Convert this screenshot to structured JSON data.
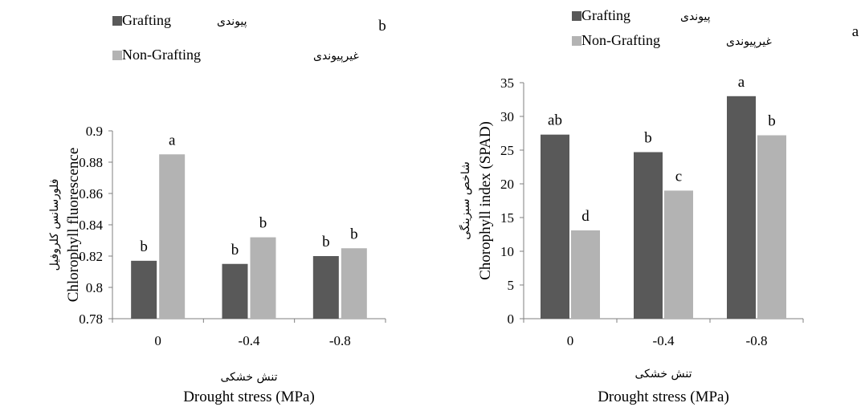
{
  "colors": {
    "grafting": "#595959",
    "non_grafting": "#b3b3b3",
    "axis": "#7f7f7f"
  },
  "chart_data": [
    {
      "type": "bar",
      "panel_label": "b",
      "categories": [
        "0",
        "-0.4",
        "-0.8"
      ],
      "series": [
        {
          "name": "Grafting",
          "name_fa": "پیوندی",
          "values": [
            0.817,
            0.815,
            0.82
          ],
          "letters": [
            "b",
            "b",
            "b"
          ]
        },
        {
          "name": "Non-Grafting",
          "name_fa": "غیرپیوندی",
          "values": [
            0.885,
            0.832,
            0.825
          ],
          "letters": [
            "a",
            "b",
            "b"
          ]
        }
      ],
      "ylabel": "Chlorophyll fluorescence",
      "ylabel_fa": "فلورسانس کلروفیل",
      "xlabel": "Drought stress (MPa)",
      "xlabel_fa": "تنش خشکی",
      "ylim": [
        0.78,
        0.9
      ],
      "yticks": [
        "0.78",
        "0.8",
        "0.82",
        "0.84",
        "0.86",
        "0.88",
        "0.9"
      ],
      "grid": false,
      "legend_position": "top-left"
    },
    {
      "type": "bar",
      "panel_label": "a",
      "categories": [
        "0",
        "-0.4",
        "-0.8"
      ],
      "series": [
        {
          "name": "Grafting",
          "name_fa": "پیوندی",
          "values": [
            27.3,
            24.7,
            33
          ],
          "letters": [
            "ab",
            "b",
            "a"
          ]
        },
        {
          "name": "Non-Grafting",
          "name_fa": "غیرپیوندی",
          "values": [
            13.1,
            19,
            27.2
          ],
          "letters": [
            "d",
            "c",
            "b"
          ]
        }
      ],
      "ylabel": "Chorophyll index (SPAD)",
      "ylabel_fa": "شاخص سبزینگی",
      "xlabel": "Drought stress (MPa)",
      "xlabel_fa": "تنش خشکی",
      "ylim": [
        0,
        35
      ],
      "yticks": [
        "0",
        "5",
        "10",
        "15",
        "20",
        "25",
        "30",
        "35"
      ],
      "grid": false,
      "legend_position": "top-left"
    }
  ]
}
